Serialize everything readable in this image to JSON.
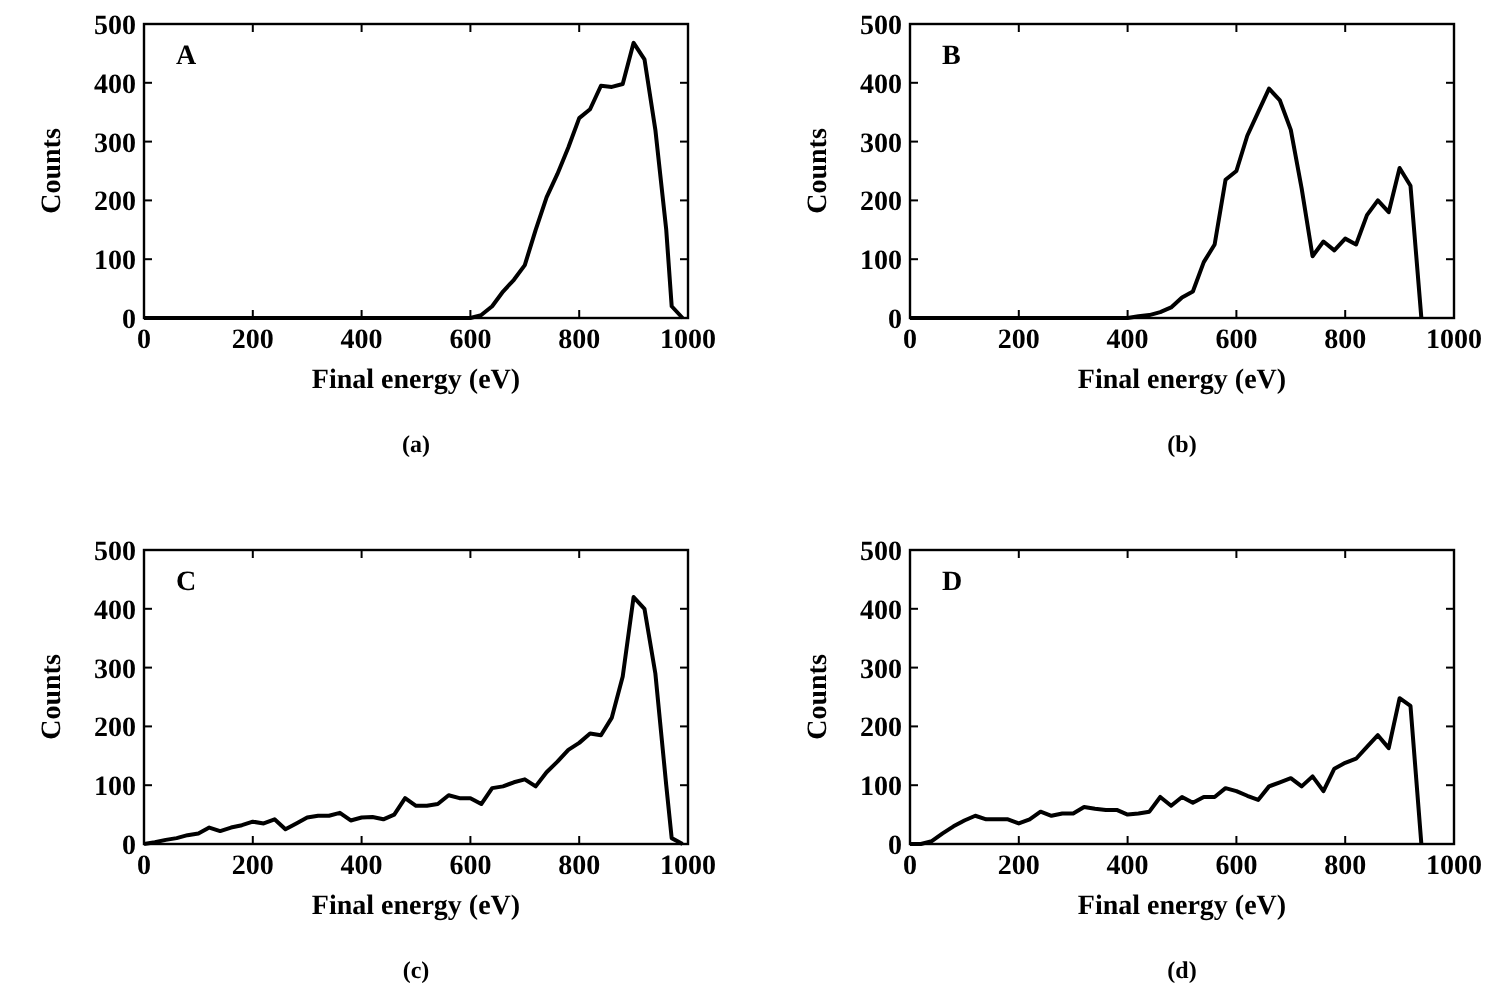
{
  "chart_data": [
    {
      "type": "line",
      "xlabel": "Final energy (eV)",
      "ylabel": "Counts",
      "annotations": [
        "A",
        "(a)"
      ],
      "xlim": [
        0,
        1000
      ],
      "ylim": [
        0,
        500
      ],
      "xticks": [
        0,
        200,
        400,
        600,
        800,
        1000
      ],
      "yticks": [
        0,
        100,
        200,
        300,
        400,
        500
      ],
      "grid": false,
      "series": [
        {
          "color": "#000000",
          "x": [
            0,
            600,
            620,
            640,
            660,
            680,
            700,
            720,
            740,
            760,
            780,
            800,
            820,
            840,
            860,
            880,
            900,
            920,
            940,
            960,
            970,
            990
          ],
          "values": [
            0,
            0,
            5,
            20,
            45,
            65,
            90,
            150,
            205,
            245,
            290,
            340,
            355,
            395,
            393,
            398,
            468,
            440,
            320,
            150,
            20,
            0
          ]
        }
      ]
    },
    {
      "type": "line",
      "xlabel": "Final energy (eV)",
      "ylabel": "Counts",
      "annotations": [
        "B",
        "(b)"
      ],
      "xlim": [
        0,
        1000
      ],
      "ylim": [
        0,
        500
      ],
      "xticks": [
        0,
        200,
        400,
        600,
        800,
        1000
      ],
      "yticks": [
        0,
        100,
        200,
        300,
        400,
        500
      ],
      "grid": false,
      "series": [
        {
          "color": "#000000",
          "x": [
            0,
            400,
            420,
            440,
            460,
            480,
            500,
            520,
            540,
            560,
            580,
            600,
            620,
            640,
            660,
            680,
            700,
            720,
            740,
            760,
            780,
            800,
            820,
            840,
            860,
            880,
            900,
            920,
            940
          ],
          "values": [
            0,
            0,
            3,
            5,
            10,
            18,
            35,
            45,
            95,
            125,
            235,
            250,
            310,
            350,
            390,
            370,
            320,
            220,
            105,
            130,
            115,
            135,
            125,
            175,
            200,
            180,
            255,
            225,
            0
          ]
        }
      ]
    },
    {
      "type": "line",
      "xlabel": "Final energy (eV)",
      "ylabel": "Counts",
      "annotations": [
        "C",
        "(c)"
      ],
      "xlim": [
        0,
        1000
      ],
      "ylim": [
        0,
        500
      ],
      "xticks": [
        0,
        200,
        400,
        600,
        800,
        1000
      ],
      "yticks": [
        0,
        100,
        200,
        300,
        400,
        500
      ],
      "grid": false,
      "series": [
        {
          "color": "#000000",
          "x": [
            0,
            20,
            40,
            60,
            80,
            100,
            120,
            140,
            160,
            180,
            200,
            220,
            240,
            260,
            280,
            300,
            320,
            340,
            360,
            380,
            400,
            420,
            440,
            460,
            480,
            500,
            520,
            540,
            560,
            580,
            600,
            620,
            640,
            660,
            680,
            700,
            720,
            740,
            760,
            780,
            800,
            820,
            840,
            860,
            880,
            900,
            920,
            940,
            960,
            970,
            990
          ],
          "values": [
            0,
            3,
            7,
            10,
            15,
            18,
            28,
            22,
            28,
            32,
            38,
            35,
            42,
            25,
            35,
            45,
            48,
            48,
            53,
            40,
            45,
            46,
            42,
            50,
            78,
            65,
            65,
            68,
            83,
            78,
            78,
            68,
            95,
            98,
            105,
            110,
            98,
            122,
            140,
            160,
            172,
            188,
            185,
            215,
            285,
            420,
            400,
            290,
            100,
            10,
            0
          ]
        }
      ]
    },
    {
      "type": "line",
      "xlabel": "Final energy (eV)",
      "ylabel": "Counts",
      "annotations": [
        "D",
        "(d)"
      ],
      "xlim": [
        0,
        1000
      ],
      "ylim": [
        0,
        500
      ],
      "xticks": [
        0,
        200,
        400,
        600,
        800,
        1000
      ],
      "yticks": [
        0,
        100,
        200,
        300,
        400,
        500
      ],
      "grid": false,
      "series": [
        {
          "color": "#000000",
          "x": [
            0,
            20,
            40,
            60,
            80,
            100,
            120,
            140,
            160,
            180,
            200,
            220,
            240,
            260,
            280,
            300,
            320,
            340,
            360,
            380,
            400,
            420,
            440,
            460,
            480,
            500,
            520,
            540,
            560,
            580,
            600,
            620,
            640,
            660,
            680,
            700,
            720,
            740,
            760,
            780,
            800,
            820,
            840,
            860,
            880,
            900,
            920,
            940
          ],
          "values": [
            0,
            0,
            5,
            18,
            30,
            40,
            48,
            42,
            42,
            42,
            35,
            42,
            55,
            48,
            52,
            52,
            63,
            60,
            58,
            58,
            50,
            52,
            55,
            80,
            65,
            80,
            70,
            80,
            80,
            95,
            90,
            82,
            75,
            98,
            105,
            112,
            98,
            115,
            90,
            128,
            138,
            145,
            165,
            185,
            163,
            248,
            235,
            0
          ]
        }
      ]
    }
  ]
}
